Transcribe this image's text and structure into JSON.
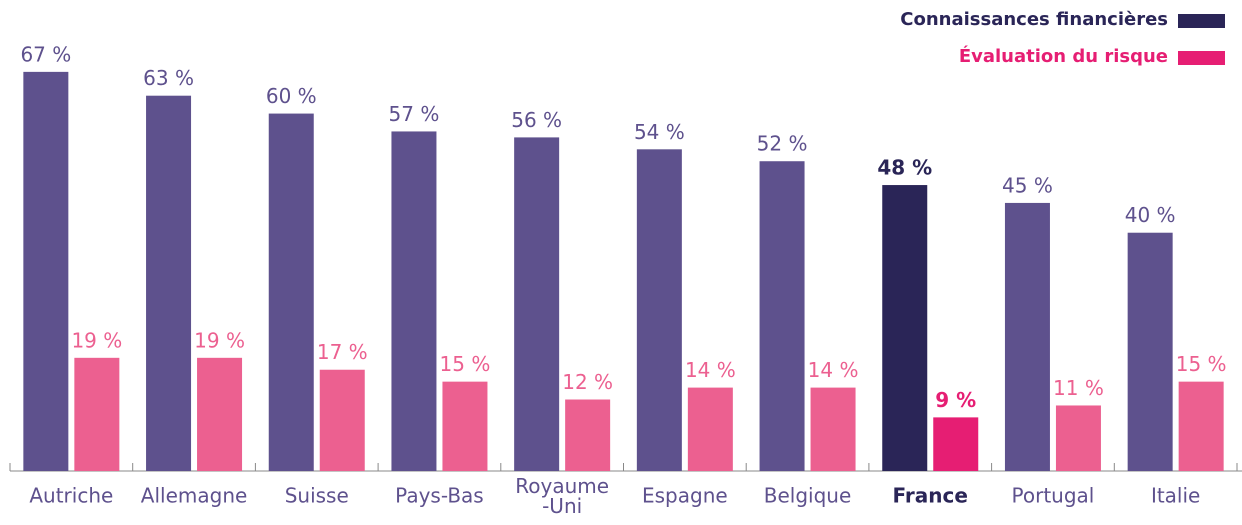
{
  "chart_data": {
    "type": "bar",
    "categories": [
      "Autriche",
      "Allemagne",
      "Suisse",
      "Pays-Bas",
      "Royaume\n-Uni",
      "Espagne",
      "Belgique",
      "France",
      "Portugal",
      "Italie"
    ],
    "series": [
      {
        "name": "Connaissances financières",
        "color": "#5e518d",
        "highlight_color": "#2a2557",
        "label_color": "#5e518d",
        "legend_color": "#2a2557",
        "values": [
          67,
          63,
          60,
          57,
          56,
          54,
          52,
          48,
          45,
          40
        ],
        "value_labels": [
          "67 %",
          "63 %",
          "60 %",
          "57 %",
          "56 %",
          "54 %",
          "52 %",
          "48 %",
          "45 %",
          "40 %"
        ]
      },
      {
        "name": "Évaluation du risque",
        "color": "#ec6090",
        "highlight_color": "#e61e73",
        "label_color": "#ec6090",
        "legend_color": "#e61e73",
        "values": [
          19,
          19,
          17,
          15,
          12,
          14,
          14,
          9,
          11,
          15
        ],
        "value_labels": [
          "19 %",
          "19 %",
          "17 %",
          "15 %",
          "12 %",
          "14 %",
          "14 %",
          "9 %",
          "11 %",
          "15 %"
        ]
      }
    ],
    "highlight": "France",
    "ylim": [
      0,
      70
    ],
    "legend": "top-right"
  }
}
